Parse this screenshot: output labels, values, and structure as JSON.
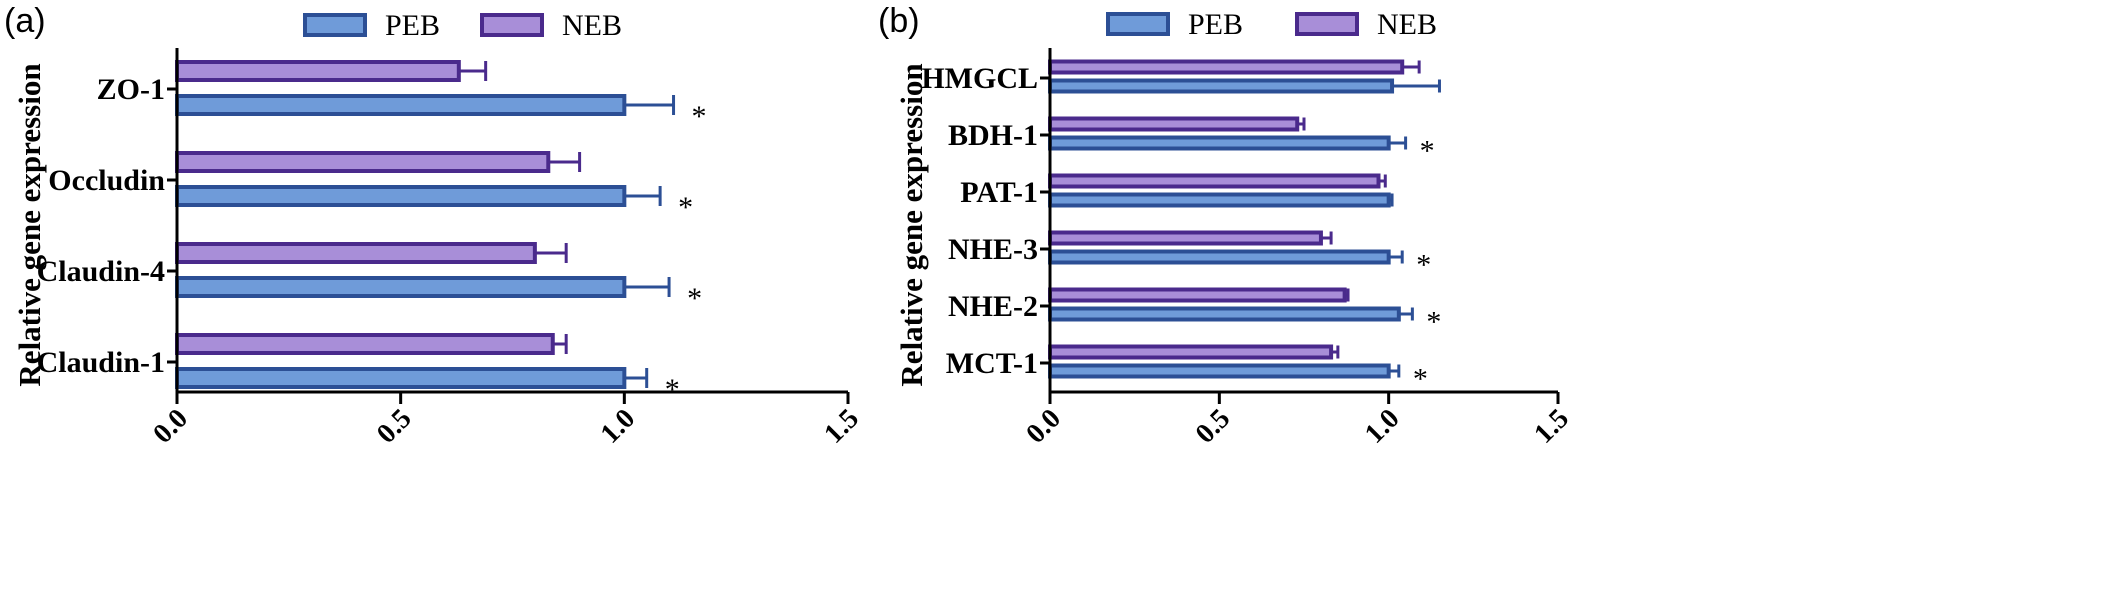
{
  "chart_data": [
    {
      "type": "bar",
      "orientation": "horizontal",
      "panel_label": "(a)",
      "ylabel": "Relative gene expression",
      "xlabel": "",
      "xlim": [
        0,
        1.5
      ],
      "xticks": [
        "0.0",
        "0.5",
        "1.0",
        "1.5"
      ],
      "categories": [
        "ZO-1",
        "Occludin",
        "Claudin-4",
        "Claudin-1"
      ],
      "series": [
        {
          "name": "PEB",
          "color": "#6f9bd9",
          "edge": "#2c4f95",
          "values": [
            1.0,
            1.0,
            1.0,
            1.0
          ],
          "errors": [
            0.11,
            0.08,
            0.1,
            0.05
          ]
        },
        {
          "name": "NEB",
          "color": "#a88ed8",
          "edge": "#4a2a8c",
          "values": [
            0.63,
            0.83,
            0.8,
            0.84
          ],
          "errors": [
            0.06,
            0.07,
            0.07,
            0.03
          ]
        }
      ],
      "significance": [
        "*",
        "*",
        "*",
        "*"
      ],
      "legend": "top"
    },
    {
      "type": "bar",
      "orientation": "horizontal",
      "panel_label": "(b)",
      "ylabel": "Relative gene expression",
      "xlabel": "",
      "xlim": [
        0,
        1.5
      ],
      "xticks": [
        "0.0",
        "0.5",
        "1.0",
        "1.5"
      ],
      "categories": [
        "HMGCL",
        "BDH-1",
        "PAT-1",
        "NHE-3",
        "NHE-2",
        "MCT-1"
      ],
      "series": [
        {
          "name": "PEB",
          "color": "#6f9bd9",
          "edge": "#2c4f95",
          "values": [
            1.01,
            1.0,
            1.0,
            1.0,
            1.03,
            1.0
          ],
          "errors": [
            0.14,
            0.05,
            0.01,
            0.04,
            0.04,
            0.03
          ]
        },
        {
          "name": "NEB",
          "color": "#a88ed8",
          "edge": "#4a2a8c",
          "values": [
            1.04,
            0.73,
            0.97,
            0.8,
            0.87,
            0.83
          ],
          "errors": [
            0.05,
            0.02,
            0.02,
            0.03,
            0.01,
            0.02
          ]
        }
      ],
      "significance": [
        "",
        "*",
        "",
        "*",
        "*",
        "*"
      ],
      "legend": "top"
    }
  ]
}
